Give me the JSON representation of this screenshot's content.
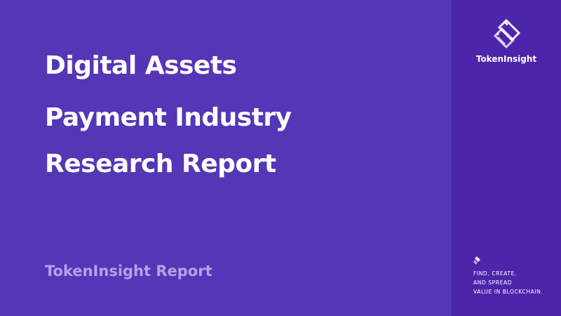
{
  "slide": {
    "title_lines": [
      "Digital Assets",
      "Payment Industry",
      "Research Report"
    ],
    "subtitle": "TokenInsight Report"
  },
  "sidebar": {
    "brand": "TokenInsight",
    "logo_icon": "tokeninsight-logo-icon",
    "tagline_icon": "tokeninsight-mark-icon",
    "tagline_lines": [
      "FIND, CREATE,",
      "AND SPREAD",
      "VALUE IN BLOCKCHAIN."
    ]
  },
  "colors": {
    "background": "#5536b6",
    "sidebar": "#4c25ab",
    "title": "#ffffff",
    "subtitle": "#b4a3e8"
  }
}
